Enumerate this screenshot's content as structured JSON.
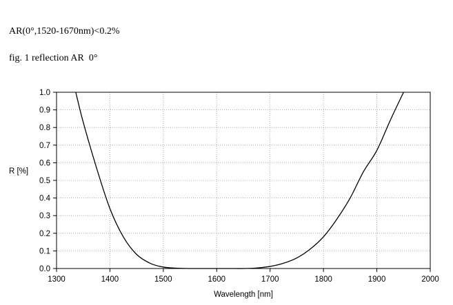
{
  "document": {
    "spec_line": "AR(0°,1520-1670nm)<0.2%",
    "figure_caption": "fig. 1 reflection AR  0°"
  },
  "chart_data": {
    "type": "line",
    "title": "",
    "xlabel": "Wavelength [nm]",
    "ylabel": "R [%]",
    "xlim": [
      1300,
      2000
    ],
    "ylim": [
      0.0,
      1.0
    ],
    "x_ticks": [
      1300,
      1400,
      1500,
      1600,
      1700,
      1800,
      1900,
      2000
    ],
    "x_tick_labels": [
      "1300",
      "1400",
      "1500",
      "1600",
      "1700",
      "1800",
      "1900",
      "2000"
    ],
    "y_ticks": [
      0.0,
      0.1,
      0.2,
      0.3,
      0.4,
      0.5,
      0.6,
      0.7,
      0.8,
      0.9,
      1.0
    ],
    "y_tick_labels": [
      "0.0",
      "0.1",
      "0.2",
      "0.3",
      "0.4",
      "0.5",
      "0.6",
      "0.7",
      "0.8",
      "0.9",
      "1.0"
    ],
    "grid": true,
    "line_color": "#000000",
    "grid_color": "#999999",
    "series": [
      {
        "x": [
          1336,
          1350,
          1375,
          1400,
          1425,
          1450,
          1475,
          1500,
          1525,
          1550,
          1575,
          1600,
          1625,
          1650,
          1675,
          1700,
          1725,
          1750,
          1775,
          1800,
          1825,
          1850,
          1875,
          1900,
          1925,
          1950
        ],
        "y": [
          1.0,
          0.83,
          0.57,
          0.34,
          0.18,
          0.08,
          0.03,
          0.008,
          0.002,
          0.0,
          0.0,
          0.0,
          0.0,
          0.0,
          0.003,
          0.012,
          0.03,
          0.06,
          0.11,
          0.18,
          0.28,
          0.4,
          0.55,
          0.67,
          0.84,
          1.0
        ]
      }
    ]
  }
}
